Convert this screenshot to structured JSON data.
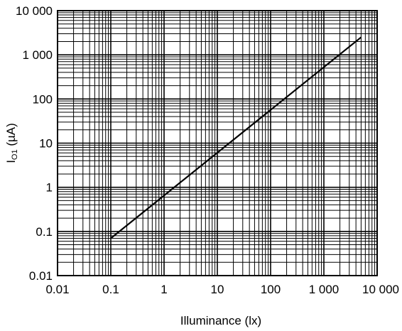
{
  "chart_data": {
    "type": "line",
    "xscale": "log",
    "yscale": "log",
    "xlim": [
      0.01,
      10000
    ],
    "ylim": [
      0.01,
      10000
    ],
    "xlabel": "Illuminance  (lx)",
    "ylabel": {
      "main": "I",
      "subscript": "O1",
      "unit": " (µA)"
    },
    "x_ticks": [
      0.01,
      0.1,
      1,
      10,
      100,
      1000,
      10000
    ],
    "x_tick_labels": [
      "0.01",
      "0.1",
      "1",
      "10",
      "100",
      "1 000",
      "10 000"
    ],
    "y_ticks": [
      0.01,
      0.1,
      1,
      10,
      100,
      1000,
      10000
    ],
    "y_tick_labels": [
      "0.01",
      "0.1",
      "1",
      "10",
      "100",
      "1 000",
      "10 000"
    ],
    "grid": true,
    "series": [
      {
        "x": [
          0.1,
          5000
        ],
        "y": [
          0.07,
          2500
        ]
      }
    ]
  }
}
